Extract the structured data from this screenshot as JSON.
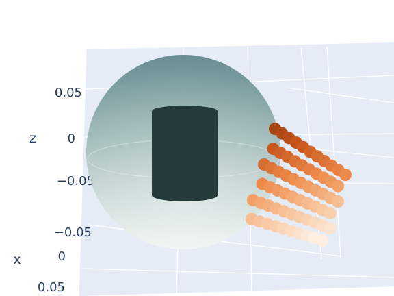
{
  "chart_data": {
    "type": "scatter3d",
    "title": "",
    "axes": {
      "x": {
        "label": "x",
        "ticks": [
          "−0.05",
          "0",
          "0.05"
        ]
      },
      "z": {
        "label": "z",
        "ticks": [
          "0.05",
          "0",
          "−0.05"
        ]
      }
    },
    "background_color": "#e5ecf6",
    "grid_color": "#ffffff",
    "series": [
      {
        "kind": "sphere-surface",
        "color_top": "#5e8588",
        "color_bottom": "#eef4ef",
        "opacity": 0.75
      },
      {
        "kind": "cylinder-points",
        "color": "#253a3b"
      },
      {
        "kind": "point-cloud",
        "colorscale": [
          "#7a2f0c",
          "#c4521a",
          "#ee8a4a",
          "#f8c49a",
          "#fdeee0"
        ],
        "points": [
          {
            "a": 0.0,
            "b": 0.0
          },
          {
            "a": 0.1,
            "b": 0.0
          },
          {
            "a": 0.2,
            "b": 0.0
          },
          {
            "a": 0.3,
            "b": 0.0
          },
          {
            "a": 0.4,
            "b": 0.0
          },
          {
            "a": 0.5,
            "b": 0.0
          },
          {
            "a": 0.6,
            "b": 0.0
          },
          {
            "a": 0.7,
            "b": 0.0
          },
          {
            "a": 0.8,
            "b": 0.0
          },
          {
            "a": 0.9,
            "b": 0.0
          },
          {
            "a": 1.0,
            "b": 0.0
          },
          {
            "a": 0.05,
            "b": 0.2
          },
          {
            "a": 0.15,
            "b": 0.2
          },
          {
            "a": 0.25,
            "b": 0.2
          },
          {
            "a": 0.35,
            "b": 0.2
          },
          {
            "a": 0.45,
            "b": 0.2
          },
          {
            "a": 0.55,
            "b": 0.2
          },
          {
            "a": 0.65,
            "b": 0.2
          },
          {
            "a": 0.75,
            "b": 0.2
          },
          {
            "a": 0.85,
            "b": 0.2
          },
          {
            "a": 0.95,
            "b": 0.2
          },
          {
            "a": 0.0,
            "b": 0.4
          },
          {
            "a": 0.1,
            "b": 0.4
          },
          {
            "a": 0.2,
            "b": 0.4
          },
          {
            "a": 0.3,
            "b": 0.4
          },
          {
            "a": 0.4,
            "b": 0.4
          },
          {
            "a": 0.5,
            "b": 0.4
          },
          {
            "a": 0.6,
            "b": 0.4
          },
          {
            "a": 0.7,
            "b": 0.4
          },
          {
            "a": 0.8,
            "b": 0.4
          },
          {
            "a": 0.9,
            "b": 0.4
          },
          {
            "a": 1.0,
            "b": 0.4
          },
          {
            "a": 0.05,
            "b": 0.6
          },
          {
            "a": 0.15,
            "b": 0.6
          },
          {
            "a": 0.25,
            "b": 0.6
          },
          {
            "a": 0.35,
            "b": 0.6
          },
          {
            "a": 0.45,
            "b": 0.6
          },
          {
            "a": 0.55,
            "b": 0.6
          },
          {
            "a": 0.65,
            "b": 0.6
          },
          {
            "a": 0.75,
            "b": 0.6
          },
          {
            "a": 0.85,
            "b": 0.6
          },
          {
            "a": 0.95,
            "b": 0.6
          },
          {
            "a": 0.0,
            "b": 0.8
          },
          {
            "a": 0.1,
            "b": 0.8
          },
          {
            "a": 0.2,
            "b": 0.8
          },
          {
            "a": 0.3,
            "b": 0.8
          },
          {
            "a": 0.4,
            "b": 0.8
          },
          {
            "a": 0.5,
            "b": 0.8
          },
          {
            "a": 0.6,
            "b": 0.8
          },
          {
            "a": 0.7,
            "b": 0.8
          },
          {
            "a": 0.8,
            "b": 0.8
          },
          {
            "a": 0.9,
            "b": 0.8
          },
          {
            "a": 1.0,
            "b": 0.8
          },
          {
            "a": 0.05,
            "b": 1.0
          },
          {
            "a": 0.15,
            "b": 1.0
          },
          {
            "a": 0.25,
            "b": 1.0
          },
          {
            "a": 0.35,
            "b": 1.0
          },
          {
            "a": 0.45,
            "b": 1.0
          },
          {
            "a": 0.55,
            "b": 1.0
          },
          {
            "a": 0.65,
            "b": 1.0
          },
          {
            "a": 0.75,
            "b": 1.0
          },
          {
            "a": 0.85,
            "b": 1.0
          },
          {
            "a": 0.95,
            "b": 1.0
          }
        ]
      }
    ]
  }
}
